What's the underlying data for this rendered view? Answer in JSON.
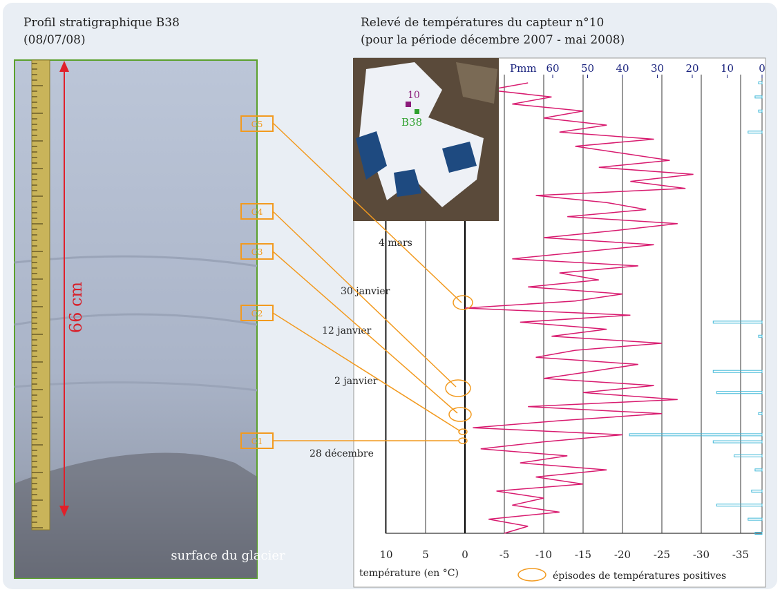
{
  "left_panel": {
    "title_line1": "Profil stratigraphique B38",
    "title_line2": "(08/07/08)",
    "height_label": "66 cm",
    "surface_label": "surface du glacier",
    "layers": [
      "C5",
      "C4",
      "C3",
      "C2",
      "C1"
    ]
  },
  "right_panel": {
    "title_line1": "Relevé de températures du capteur n°10",
    "title_line2": "(pour la période décembre 2007 - mai 2008)",
    "map_labels": [
      "10",
      "B38"
    ],
    "dates": [
      "4 mars",
      "30 janvier",
      "12 janvier",
      "2 janvier",
      "28 décembre"
    ],
    "temperature_axis": {
      "label": "température (en °C)",
      "ticks": [
        10,
        5,
        0,
        -5,
        -10,
        -15,
        -20,
        -25,
        -30,
        -35
      ]
    },
    "precipitation_axis": {
      "label": "Pmm",
      "ticks": [
        60,
        50,
        40,
        30,
        20,
        10,
        0
      ]
    },
    "legend": "épisodes de températures positives",
    "temperature_series": [
      -5,
      -8,
      -3,
      -12,
      -6,
      -10,
      -4,
      -15,
      -9,
      -18,
      -7,
      -13,
      -2,
      -10,
      -20,
      -1,
      -12,
      -25,
      -8,
      -27,
      -15,
      -24,
      -10,
      -16,
      -22,
      -9,
      -14,
      -25,
      -11,
      -18,
      -7,
      -21,
      0,
      -14,
      -20,
      -8,
      -17,
      -12,
      -22,
      -6,
      -15,
      -24,
      -10,
      -19,
      -27,
      -13,
      -23,
      -18,
      -9,
      -28,
      -21,
      -29,
      -17,
      -26,
      -20,
      -14,
      -24,
      -12,
      -18,
      -10,
      -15,
      -6,
      -11,
      -3,
      -8
    ],
    "precipitation_series": [
      2,
      0,
      4,
      0,
      13,
      0,
      3,
      0,
      0,
      2,
      0,
      8,
      0,
      14,
      38,
      0,
      0,
      1,
      0,
      0,
      13,
      0,
      0,
      14,
      0,
      0,
      0,
      0,
      1,
      0,
      14,
      0,
      0,
      0,
      0,
      0,
      0,
      0,
      0,
      0,
      0,
      0,
      0,
      0,
      0,
      0,
      0,
      0,
      0,
      0,
      0,
      0,
      0,
      0,
      0,
      0,
      0,
      4,
      0,
      0,
      1,
      0,
      2,
      0,
      1
    ]
  }
}
